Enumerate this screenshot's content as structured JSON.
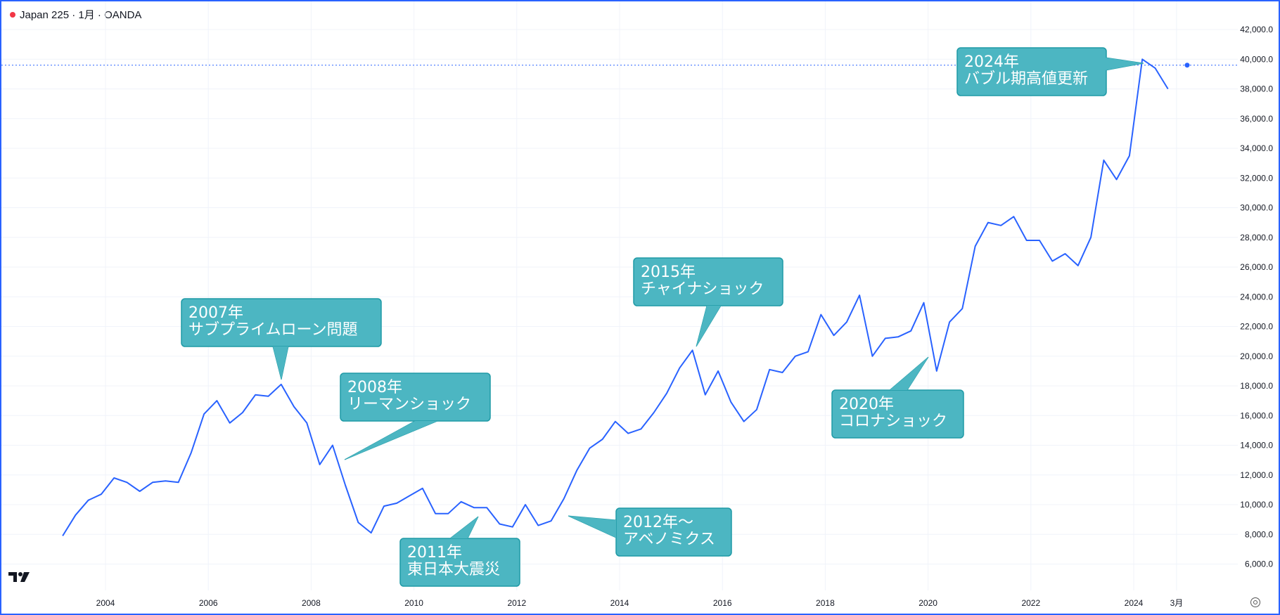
{
  "header": {
    "symbol_line": "Japan 225 · 1月 · OANDA"
  },
  "colors": {
    "line": "#2962ff",
    "callout_fill": "#4cb6c2",
    "callout_stroke": "#1f9aa6",
    "grid": "#f0f3fa",
    "status_dot": "#f23645"
  },
  "icons": {
    "logo": "tradingview-logo-icon",
    "settings": "gear-icon"
  },
  "chart_data": {
    "type": "line",
    "title": "",
    "x_axis": {
      "labels": [
        "2004",
        "2006",
        "2008",
        "2010",
        "2012",
        "2014",
        "2016",
        "2018",
        "2020",
        "2022",
        "2024",
        "3月"
      ]
    },
    "y_axis": {
      "range": [
        5000,
        43000
      ],
      "labels": [
        "42,000.0",
        "40,000.0",
        "38,000.0",
        "36,000.0",
        "34,000.0",
        "32,000.0",
        "30,000.0",
        "28,000.0",
        "26,000.0",
        "24,000.0",
        "22,000.0",
        "20,000.0",
        "18,000.0",
        "16,000.0",
        "14,000.0",
        "12,000.0",
        "10,000.0",
        "8,000.0",
        "6,000.0"
      ]
    },
    "last_value": "39,600",
    "series": [
      {
        "x": [
          "2003-03",
          "2003-06",
          "2003-09",
          "2003-12",
          "2004-03",
          "2004-06",
          "2004-09",
          "2004-12",
          "2005-03",
          "2005-06",
          "2005-09",
          "2005-12",
          "2006-03",
          "2006-06",
          "2006-09",
          "2006-12",
          "2007-03",
          "2007-06",
          "2007-09",
          "2007-12",
          "2008-03",
          "2008-06",
          "2008-09",
          "2008-12",
          "2009-03",
          "2009-06",
          "2009-09",
          "2009-12",
          "2010-03",
          "2010-06",
          "2010-09",
          "2010-12",
          "2011-03",
          "2011-06",
          "2011-09",
          "2011-12",
          "2012-03",
          "2012-06",
          "2012-09",
          "2012-12",
          "2013-03",
          "2013-06",
          "2013-09",
          "2013-12",
          "2014-03",
          "2014-06",
          "2014-09",
          "2014-12",
          "2015-03",
          "2015-06",
          "2015-09",
          "2015-12",
          "2016-03",
          "2016-06",
          "2016-09",
          "2016-12",
          "2017-03",
          "2017-06",
          "2017-09",
          "2017-12",
          "2018-03",
          "2018-06",
          "2018-09",
          "2018-12",
          "2019-03",
          "2019-06",
          "2019-09",
          "2019-12",
          "2020-03",
          "2020-06",
          "2020-09",
          "2020-12",
          "2021-03",
          "2021-06",
          "2021-09",
          "2021-12",
          "2022-03",
          "2022-06",
          "2022-09",
          "2022-12",
          "2023-03",
          "2023-06",
          "2023-09",
          "2023-12",
          "2024-03",
          "2024-06",
          "2024-09"
        ],
        "values": [
          7900,
          9300,
          10300,
          10700,
          11800,
          11500,
          10900,
          11500,
          11600,
          11500,
          13500,
          16100,
          17000,
          15500,
          16200,
          17400,
          17300,
          18100,
          16600,
          15500,
          12700,
          14000,
          11300,
          8800,
          8100,
          9900,
          10100,
          10600,
          11100,
          9400,
          9400,
          10200,
          9800,
          9800,
          8700,
          8500,
          10000,
          8600,
          8900,
          10400,
          12300,
          13800,
          14400,
          15600,
          14800,
          15100,
          16200,
          17500,
          19200,
          20400,
          17400,
          19000,
          16900,
          15600,
          16400,
          19100,
          18900,
          20000,
          20300,
          22800,
          21400,
          22300,
          24100,
          20000,
          21200,
          21300,
          21700,
          23600,
          19000,
          22300,
          23200,
          27400,
          29000,
          28800,
          29400,
          27800,
          27800,
          26400,
          26900,
          26100,
          28000,
          33200,
          31900,
          33500,
          40000,
          39400,
          38000
        ]
      }
    ],
    "annotations": [
      {
        "lines": [
          "2007年",
          "サブプライムローン問題"
        ]
      },
      {
        "lines": [
          "2008年",
          "リーマンショック"
        ]
      },
      {
        "lines": [
          "2011年",
          "東日本大震災"
        ]
      },
      {
        "lines": [
          "2012年〜",
          "アベノミクス"
        ]
      },
      {
        "lines": [
          "2015年",
          "チャイナショック"
        ]
      },
      {
        "lines": [
          "2020年",
          "コロナショック"
        ]
      },
      {
        "lines": [
          "2024年",
          "バブル期高値更新"
        ]
      }
    ]
  }
}
